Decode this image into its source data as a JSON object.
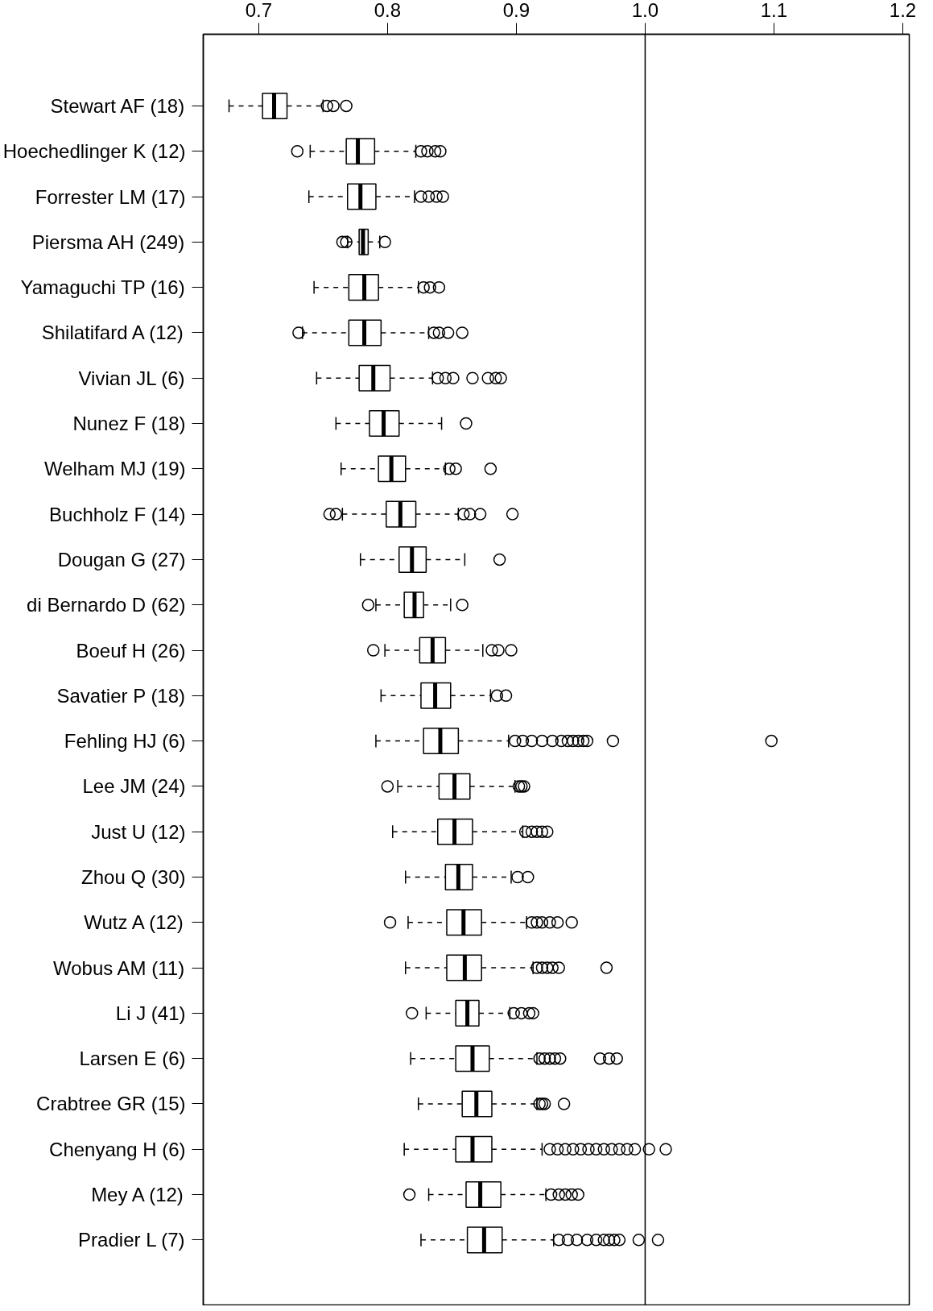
{
  "chart_data": {
    "type": "box",
    "orientation": "horizontal",
    "categories": [
      "Stewart AF (18)",
      "Hoechedlinger K (12)",
      "Forrester LM (17)",
      "Piersma AH (249)",
      "Yamaguchi TP (16)",
      "Shilatifard A (12)",
      "Vivian JL (6)",
      "Nunez F (18)",
      "Welham MJ (19)",
      "Buchholz F (14)",
      "Dougan G (27)",
      "di Bernardo D (62)",
      "Boeuf H (26)",
      "Savatier P (18)",
      "Fehling HJ (6)",
      "Lee JM (24)",
      "Just U (12)",
      "Zhou Q (30)",
      "Wutz A (12)",
      "Wobus AM (11)",
      "Li J (41)",
      "Larsen E (6)",
      "Crabtree GR (15)",
      "Chenyang H (6)",
      "Mey A (12)",
      "Pradier L (7)"
    ],
    "boxes": [
      {
        "low": 0.677,
        "q1": 0.703,
        "median": 0.712,
        "q3": 0.722,
        "high": 0.75,
        "outliers": [
          0.753,
          0.758,
          0.768
        ]
      },
      {
        "low": 0.74,
        "q1": 0.768,
        "median": 0.777,
        "q3": 0.79,
        "high": 0.822,
        "outliers": [
          0.73,
          0.826,
          0.831,
          0.837,
          0.841
        ]
      },
      {
        "low": 0.739,
        "q1": 0.769,
        "median": 0.779,
        "q3": 0.791,
        "high": 0.821,
        "outliers": [
          0.826,
          0.832,
          0.838,
          0.843
        ]
      },
      {
        "low": 0.769,
        "q1": 0.778,
        "median": 0.781,
        "q3": 0.785,
        "high": 0.794,
        "outliers": [
          0.765,
          0.768,
          0.798
        ]
      },
      {
        "low": 0.743,
        "q1": 0.77,
        "median": 0.782,
        "q3": 0.793,
        "high": 0.824,
        "outliers": [
          0.828,
          0.833,
          0.84
        ]
      },
      {
        "low": 0.734,
        "q1": 0.77,
        "median": 0.782,
        "q3": 0.795,
        "high": 0.832,
        "outliers": [
          0.731,
          0.836,
          0.84,
          0.847,
          0.858
        ]
      },
      {
        "low": 0.745,
        "q1": 0.778,
        "median": 0.789,
        "q3": 0.802,
        "high": 0.835,
        "outliers": [
          0.839,
          0.845,
          0.851,
          0.866,
          0.878,
          0.884,
          0.888
        ]
      },
      {
        "low": 0.76,
        "q1": 0.786,
        "median": 0.797,
        "q3": 0.809,
        "high": 0.842,
        "outliers": [
          0.861
        ]
      },
      {
        "low": 0.764,
        "q1": 0.793,
        "median": 0.803,
        "q3": 0.814,
        "high": 0.845,
        "outliers": [
          0.848,
          0.853,
          0.88
        ]
      },
      {
        "low": 0.765,
        "q1": 0.799,
        "median": 0.81,
        "q3": 0.822,
        "high": 0.855,
        "outliers": [
          0.755,
          0.76,
          0.859,
          0.864,
          0.872,
          0.897
        ]
      },
      {
        "low": 0.779,
        "q1": 0.809,
        "median": 0.819,
        "q3": 0.83,
        "high": 0.86,
        "outliers": [
          0.887
        ]
      },
      {
        "low": 0.791,
        "q1": 0.813,
        "median": 0.821,
        "q3": 0.828,
        "high": 0.849,
        "outliers": [
          0.785,
          0.858
        ]
      },
      {
        "low": 0.798,
        "q1": 0.825,
        "median": 0.835,
        "q3": 0.845,
        "high": 0.874,
        "outliers": [
          0.789,
          0.881,
          0.886,
          0.896
        ]
      },
      {
        "low": 0.795,
        "q1": 0.826,
        "median": 0.837,
        "q3": 0.849,
        "high": 0.88,
        "outliers": [
          0.885,
          0.892
        ]
      },
      {
        "low": 0.791,
        "q1": 0.828,
        "median": 0.841,
        "q3": 0.855,
        "high": 0.894,
        "outliers": [
          0.899,
          0.905,
          0.912,
          0.92,
          0.928,
          0.935,
          0.94,
          0.944,
          0.948,
          0.952,
          0.955,
          0.975,
          1.098
        ]
      },
      {
        "low": 0.808,
        "q1": 0.84,
        "median": 0.852,
        "q3": 0.864,
        "high": 0.899,
        "outliers": [
          0.8,
          0.902,
          0.904,
          0.906
        ]
      },
      {
        "low": 0.804,
        "q1": 0.839,
        "median": 0.852,
        "q3": 0.866,
        "high": 0.905,
        "outliers": [
          0.907,
          0.912,
          0.916,
          0.92,
          0.924
        ]
      },
      {
        "low": 0.814,
        "q1": 0.845,
        "median": 0.855,
        "q3": 0.866,
        "high": 0.896,
        "outliers": [
          0.901,
          0.909
        ]
      },
      {
        "low": 0.816,
        "q1": 0.846,
        "median": 0.859,
        "q3": 0.873,
        "high": 0.908,
        "outliers": [
          0.802,
          0.912,
          0.916,
          0.92,
          0.926,
          0.932,
          0.943
        ]
      },
      {
        "low": 0.814,
        "q1": 0.846,
        "median": 0.86,
        "q3": 0.873,
        "high": 0.913,
        "outliers": [
          0.916,
          0.92,
          0.924,
          0.928,
          0.933,
          0.97
        ]
      },
      {
        "low": 0.83,
        "q1": 0.853,
        "median": 0.862,
        "q3": 0.871,
        "high": 0.895,
        "outliers": [
          0.819,
          0.898,
          0.904,
          0.91,
          0.913
        ]
      },
      {
        "low": 0.818,
        "q1": 0.853,
        "median": 0.866,
        "q3": 0.879,
        "high": 0.916,
        "outliers": [
          0.918,
          0.922,
          0.926,
          0.93,
          0.934,
          0.965,
          0.972,
          0.978
        ]
      },
      {
        "low": 0.824,
        "q1": 0.858,
        "median": 0.869,
        "q3": 0.881,
        "high": 0.916,
        "outliers": [
          0.918,
          0.92,
          0.922,
          0.937
        ]
      },
      {
        "low": 0.813,
        "q1": 0.853,
        "median": 0.866,
        "q3": 0.881,
        "high": 0.92,
        "outliers": [
          0.926,
          0.932,
          0.938,
          0.944,
          0.95,
          0.956,
          0.962,
          0.968,
          0.974,
          0.98,
          0.986,
          0.992,
          1.003,
          1.016
        ]
      },
      {
        "low": 0.832,
        "q1": 0.861,
        "median": 0.872,
        "q3": 0.888,
        "high": 0.923,
        "outliers": [
          0.817,
          0.927,
          0.933,
          0.938,
          0.943,
          0.948
        ]
      },
      {
        "low": 0.826,
        "q1": 0.862,
        "median": 0.875,
        "q3": 0.889,
        "high": 0.929,
        "outliers": [
          0.933,
          0.94,
          0.947,
          0.955,
          0.962,
          0.968,
          0.972,
          0.976,
          0.98,
          0.995,
          1.01
        ]
      }
    ],
    "xlim": [
      0.657,
      1.205
    ],
    "xticks": [
      0.7,
      0.8,
      0.9,
      {
        "value": 1,
        "label": "1.0"
      },
      1.1,
      1.2
    ],
    "ref_lines": [
      {
        "axis": "x",
        "value": 1,
        "color": "#000000"
      }
    ],
    "grid": false,
    "marker": "circle"
  }
}
